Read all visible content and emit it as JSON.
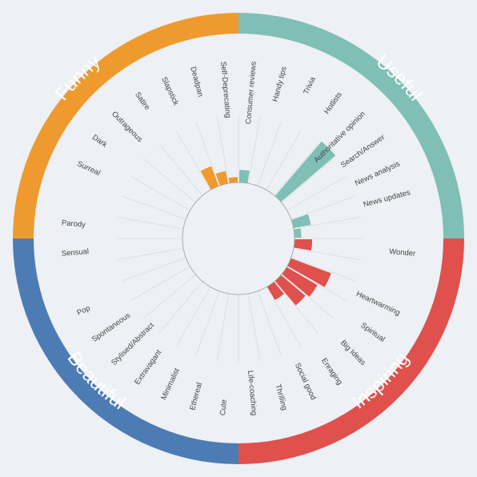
{
  "chart_data": {
    "type": "radial-bar",
    "title": "",
    "background": "#edf0f4",
    "groups": [
      {
        "name": "Useful",
        "color": "#7fbfb6"
      },
      {
        "name": "Inspiring",
        "color": "#e0504c"
      },
      {
        "name": "Beautiful",
        "color": "#4d7bb3"
      },
      {
        "name": "Funny",
        "color": "#ef9a2e"
      }
    ],
    "categories": [
      {
        "label": "Consumer reviews",
        "group": "Useful",
        "value": 0.18
      },
      {
        "label": "Handy tips",
        "group": "Useful",
        "value": 0
      },
      {
        "label": "Trivia",
        "group": "Useful",
        "value": 0
      },
      {
        "label": "Hotlists",
        "group": "Useful",
        "value": 0
      },
      {
        "label": "Authoritative opinion",
        "group": "Useful",
        "value": 1.0
      },
      {
        "label": "Search/Answer",
        "group": "Useful",
        "value": 0
      },
      {
        "label": "News analysis",
        "group": "Useful",
        "value": 0
      },
      {
        "label": "News updates",
        "group": "Useful",
        "value": 0.25
      },
      {
        "label": "",
        "group": "Useful",
        "value": 0.1
      },
      {
        "label": "Wonder",
        "group": "Inspiring",
        "value": 0.25
      },
      {
        "label": "",
        "group": "Inspiring",
        "value": 0
      },
      {
        "label": "Heartwarming",
        "group": "Inspiring",
        "value": 0.6
      },
      {
        "label": "Spiritual",
        "group": "Inspiring",
        "value": 0.5
      },
      {
        "label": "Big Ideas",
        "group": "Inspiring",
        "value": 0.45
      },
      {
        "label": "Enraging",
        "group": "Inspiring",
        "value": 0.22
      },
      {
        "label": "Social good",
        "group": "Inspiring",
        "value": 0
      },
      {
        "label": "Thrilling",
        "group": "Inspiring",
        "value": 0
      },
      {
        "label": "Life-coaching",
        "group": "Inspiring",
        "value": 0
      },
      {
        "label": "Cute",
        "group": "Beautiful",
        "value": 0
      },
      {
        "label": "Ethereal",
        "group": "Beautiful",
        "value": 0
      },
      {
        "label": "Minimalist",
        "group": "Beautiful",
        "value": 0
      },
      {
        "label": "Extravagant",
        "group": "Beautiful",
        "value": 0
      },
      {
        "label": "Stylised/Abstract",
        "group": "Beautiful",
        "value": 0
      },
      {
        "label": "Spontaneous",
        "group": "Beautiful",
        "value": 0
      },
      {
        "label": "Pop",
        "group": "Beautiful",
        "value": 0
      },
      {
        "label": "",
        "group": "Beautiful",
        "value": 0
      },
      {
        "label": "Sensual",
        "group": "Beautiful",
        "value": 0
      },
      {
        "label": "Parody",
        "group": "Funny",
        "value": 0
      },
      {
        "label": "",
        "group": "Funny",
        "value": 0
      },
      {
        "label": "Surreal",
        "group": "Funny",
        "value": 0
      },
      {
        "label": "Dark",
        "group": "Funny",
        "value": 0
      },
      {
        "label": "Outrageous",
        "group": "Funny",
        "value": 0
      },
      {
        "label": "Satire",
        "group": "Funny",
        "value": 0
      },
      {
        "label": "Slapstick",
        "group": "Funny",
        "value": 0.3
      },
      {
        "label": "Deadpan",
        "group": "Funny",
        "value": 0.18
      },
      {
        "label": "Self-Deprecating",
        "group": "Funny",
        "value": 0.08
      }
    ]
  }
}
